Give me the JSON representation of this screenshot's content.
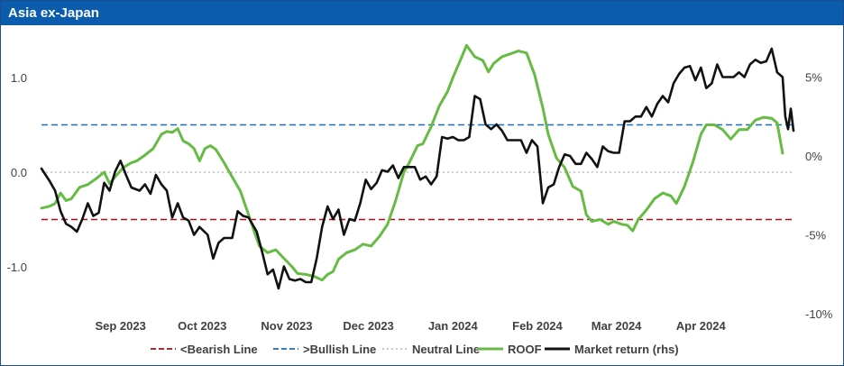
{
  "header": {
    "title": "Asia ex-Japan"
  },
  "chart_data": {
    "type": "line",
    "title": "Asia ex-Japan",
    "x_tick_labels": [
      "Sep 2023",
      "Oct 2023",
      "Nov 2023",
      "Dec 2023",
      "Jan 2024",
      "Feb 2024",
      "Mar 2024",
      "Apr 2024"
    ],
    "y_left": {
      "range": [
        -1.45,
        1.35
      ],
      "tick_values": [
        1.0,
        0.0,
        -1.0
      ],
      "tick_labels": [
        "1.0",
        "0.0",
        "-1.0"
      ]
    },
    "y_right": {
      "range": [
        -10,
        7.6
      ],
      "tick_values": [
        5,
        0,
        -5,
        -10
      ],
      "tick_labels": [
        "5%",
        "0%",
        "-5%",
        "-10%"
      ]
    },
    "reference_lines": [
      {
        "name": "<Bearish Line",
        "value": -0.5,
        "color": "#a50f15",
        "style": "dashed"
      },
      {
        "name": ">Bullish Line",
        "value": 0.5,
        "color": "#1f6fbf",
        "style": "dashed"
      },
      {
        "name": "Neutral Line",
        "value": 0.0,
        "color": "#bfbfbf",
        "style": "dotted"
      }
    ],
    "series": [
      {
        "name": "ROOF",
        "axis": "left",
        "color": "#66bb44",
        "points": [
          [
            "2023-08-17",
            -0.38
          ],
          [
            "2023-08-20",
            -0.36
          ],
          [
            "2023-08-22",
            -0.33
          ],
          [
            "2023-08-24",
            -0.22
          ],
          [
            "2023-08-26",
            -0.3
          ],
          [
            "2023-08-28",
            -0.28
          ],
          [
            "2023-08-31",
            -0.16
          ],
          [
            "2023-09-03",
            -0.13
          ],
          [
            "2023-09-06",
            -0.07
          ],
          [
            "2023-09-09",
            0.0
          ],
          [
            "2023-09-11",
            -0.12
          ],
          [
            "2023-09-13",
            -0.05
          ],
          [
            "2023-09-16",
            0.05
          ],
          [
            "2023-09-19",
            0.1
          ],
          [
            "2023-09-21",
            0.12
          ],
          [
            "2023-09-24",
            0.18
          ],
          [
            "2023-09-27",
            0.25
          ],
          [
            "2023-09-30",
            0.4
          ],
          [
            "2023-10-02",
            0.43
          ],
          [
            "2023-10-04",
            0.42
          ],
          [
            "2023-10-06",
            0.46
          ],
          [
            "2023-10-08",
            0.33
          ],
          [
            "2023-10-10",
            0.3
          ],
          [
            "2023-10-12",
            0.25
          ],
          [
            "2023-10-14",
            0.12
          ],
          [
            "2023-10-16",
            0.25
          ],
          [
            "2023-10-18",
            0.28
          ],
          [
            "2023-10-20",
            0.24
          ],
          [
            "2023-10-23",
            0.1
          ],
          [
            "2023-10-26",
            -0.05
          ],
          [
            "2023-10-29",
            -0.2
          ],
          [
            "2023-11-01",
            -0.45
          ],
          [
            "2023-11-03",
            -0.62
          ],
          [
            "2023-11-05",
            -0.78
          ],
          [
            "2023-11-08",
            -0.85
          ],
          [
            "2023-11-11",
            -0.82
          ],
          [
            "2023-11-14",
            -0.91
          ],
          [
            "2023-11-17",
            -1.0
          ],
          [
            "2023-11-19",
            -1.07
          ],
          [
            "2023-11-22",
            -1.08
          ],
          [
            "2023-11-25",
            -1.1
          ],
          [
            "2023-11-28",
            -1.14
          ],
          [
            "2023-11-30",
            -1.08
          ],
          [
            "2023-12-02",
            -1.05
          ],
          [
            "2023-12-04",
            -0.92
          ],
          [
            "2023-12-07",
            -0.85
          ],
          [
            "2023-12-10",
            -0.82
          ],
          [
            "2023-12-13",
            -0.76
          ],
          [
            "2023-12-16",
            -0.78
          ],
          [
            "2023-12-19",
            -0.68
          ],
          [
            "2023-12-22",
            -0.55
          ],
          [
            "2023-12-25",
            -0.3
          ],
          [
            "2023-12-28",
            0.0
          ],
          [
            "2023-12-30",
            0.1
          ],
          [
            "2024-01-02",
            0.28
          ],
          [
            "2024-01-04",
            0.3
          ],
          [
            "2024-01-07",
            0.48
          ],
          [
            "2024-01-10",
            0.7
          ],
          [
            "2024-01-13",
            0.85
          ],
          [
            "2024-01-15",
            1.0
          ],
          [
            "2024-01-18",
            1.2
          ],
          [
            "2024-01-20",
            1.34
          ],
          [
            "2024-01-23",
            1.22
          ],
          [
            "2024-01-26",
            1.18
          ],
          [
            "2024-01-28",
            1.06
          ],
          [
            "2024-01-30",
            1.15
          ],
          [
            "2024-02-02",
            1.22
          ],
          [
            "2024-02-05",
            1.25
          ],
          [
            "2024-02-08",
            1.28
          ],
          [
            "2024-02-11",
            1.26
          ],
          [
            "2024-02-14",
            1.03
          ],
          [
            "2024-02-17",
            0.68
          ],
          [
            "2024-02-19",
            0.4
          ],
          [
            "2024-02-22",
            0.15
          ],
          [
            "2024-02-25",
            0.05
          ],
          [
            "2024-02-28",
            -0.15
          ],
          [
            "2024-03-02",
            -0.2
          ],
          [
            "2024-03-04",
            -0.45
          ],
          [
            "2024-03-06",
            -0.52
          ],
          [
            "2024-03-09",
            -0.5
          ],
          [
            "2024-03-12",
            -0.55
          ],
          [
            "2024-03-14",
            -0.52
          ],
          [
            "2024-03-17",
            -0.55
          ],
          [
            "2024-03-19",
            -0.56
          ],
          [
            "2024-03-21",
            -0.62
          ],
          [
            "2024-03-23",
            -0.5
          ],
          [
            "2024-03-26",
            -0.4
          ],
          [
            "2024-03-29",
            -0.28
          ],
          [
            "2024-04-01",
            -0.22
          ],
          [
            "2024-04-04",
            -0.25
          ],
          [
            "2024-04-06",
            -0.33
          ],
          [
            "2024-04-09",
            -0.15
          ],
          [
            "2024-04-12",
            0.1
          ],
          [
            "2024-04-15",
            0.4
          ],
          [
            "2024-04-17",
            0.5
          ],
          [
            "2024-04-20",
            0.5
          ],
          [
            "2024-04-23",
            0.45
          ],
          [
            "2024-04-26",
            0.35
          ],
          [
            "2024-04-29",
            0.45
          ],
          [
            "2024-05-02",
            0.45
          ],
          [
            "2024-05-05",
            0.55
          ],
          [
            "2024-05-08",
            0.58
          ],
          [
            "2024-05-11",
            0.57
          ],
          [
            "2024-05-13",
            0.52
          ],
          [
            "2024-05-15",
            0.2
          ]
        ]
      },
      {
        "name": "Market return (rhs)",
        "axis": "right",
        "color": "#111111",
        "points": [
          [
            "2023-08-17",
            -0.8
          ],
          [
            "2023-08-20",
            -1.6
          ],
          [
            "2023-08-22",
            -2.2
          ],
          [
            "2023-08-24",
            -3.5
          ],
          [
            "2023-08-26",
            -4.3
          ],
          [
            "2023-08-28",
            -4.5
          ],
          [
            "2023-08-30",
            -4.8
          ],
          [
            "2023-09-01",
            -4.0
          ],
          [
            "2023-09-03",
            -3.0
          ],
          [
            "2023-09-05",
            -3.8
          ],
          [
            "2023-09-07",
            -3.6
          ],
          [
            "2023-09-09",
            -1.7
          ],
          [
            "2023-09-11",
            -2.2
          ],
          [
            "2023-09-13",
            -1.0
          ],
          [
            "2023-09-15",
            -0.3
          ],
          [
            "2023-09-17",
            -1.2
          ],
          [
            "2023-09-19",
            -2.0
          ],
          [
            "2023-09-22",
            -2.2
          ],
          [
            "2023-09-24",
            -1.8
          ],
          [
            "2023-09-26",
            -2.4
          ],
          [
            "2023-09-28",
            -1.2
          ],
          [
            "2023-09-30",
            -1.8
          ],
          [
            "2023-10-02",
            -2.2
          ],
          [
            "2023-10-04",
            -3.9
          ],
          [
            "2023-10-06",
            -3.0
          ],
          [
            "2023-10-08",
            -3.9
          ],
          [
            "2023-10-10",
            -4.1
          ],
          [
            "2023-10-12",
            -5.0
          ],
          [
            "2023-10-14",
            -4.5
          ],
          [
            "2023-10-17",
            -5.0
          ],
          [
            "2023-10-19",
            -6.5
          ],
          [
            "2023-10-21",
            -5.5
          ],
          [
            "2023-10-23",
            -5.2
          ],
          [
            "2023-10-26",
            -5.2
          ],
          [
            "2023-10-28",
            -3.5
          ],
          [
            "2023-10-30",
            -3.8
          ],
          [
            "2023-11-01",
            -3.9
          ],
          [
            "2023-11-04",
            -4.8
          ],
          [
            "2023-11-06",
            -6.1
          ],
          [
            "2023-11-08",
            -7.5
          ],
          [
            "2023-11-10",
            -7.2
          ],
          [
            "2023-11-12",
            -8.4
          ],
          [
            "2023-11-14",
            -7.0
          ],
          [
            "2023-11-16",
            -7.8
          ],
          [
            "2023-11-18",
            -7.9
          ],
          [
            "2023-11-20",
            -7.8
          ],
          [
            "2023-11-22",
            -8.0
          ],
          [
            "2023-11-24",
            -8.0
          ],
          [
            "2023-11-26",
            -6.5
          ],
          [
            "2023-11-28",
            -4.5
          ],
          [
            "2023-11-30",
            -3.2
          ],
          [
            "2023-12-02",
            -4.0
          ],
          [
            "2023-12-04",
            -3.4
          ],
          [
            "2023-12-06",
            -5.0
          ],
          [
            "2023-12-08",
            -4.0
          ],
          [
            "2023-12-10",
            -4.1
          ],
          [
            "2023-12-12",
            -3.0
          ],
          [
            "2023-12-14",
            -1.5
          ],
          [
            "2023-12-16",
            -2.1
          ],
          [
            "2023-12-18",
            -1.7
          ],
          [
            "2023-12-20",
            -0.9
          ],
          [
            "2023-12-22",
            -1.0
          ],
          [
            "2023-12-24",
            -0.6
          ],
          [
            "2023-12-26",
            -1.4
          ],
          [
            "2023-12-28",
            -0.7
          ],
          [
            "2023-12-30",
            -0.7
          ],
          [
            "2024-01-01",
            -0.7
          ],
          [
            "2024-01-03",
            -1.5
          ],
          [
            "2024-01-05",
            -1.3
          ],
          [
            "2024-01-07",
            -1.8
          ],
          [
            "2024-01-09",
            -1.3
          ],
          [
            "2024-01-11",
            1.2
          ],
          [
            "2024-01-13",
            1.1
          ],
          [
            "2024-01-15",
            1.2
          ],
          [
            "2024-01-17",
            1.0
          ],
          [
            "2024-01-19",
            1.0
          ],
          [
            "2024-01-21",
            1.2
          ],
          [
            "2024-01-23",
            3.8
          ],
          [
            "2024-01-25",
            3.6
          ],
          [
            "2024-01-27",
            2.0
          ],
          [
            "2024-01-29",
            1.7
          ],
          [
            "2024-01-31",
            2.0
          ],
          [
            "2024-02-02",
            1.6
          ],
          [
            "2024-02-04",
            1.0
          ],
          [
            "2024-02-07",
            1.0
          ],
          [
            "2024-02-09",
            1.0
          ],
          [
            "2024-02-11",
            0.2
          ],
          [
            "2024-02-13",
            1.0
          ],
          [
            "2024-02-15",
            0.6
          ],
          [
            "2024-02-17",
            -3.0
          ],
          [
            "2024-02-19",
            -2.0
          ],
          [
            "2024-02-21",
            -1.8
          ],
          [
            "2024-02-23",
            -0.7
          ],
          [
            "2024-02-25",
            0.1
          ],
          [
            "2024-02-27",
            0.0
          ],
          [
            "2024-02-29",
            -0.5
          ],
          [
            "2024-03-02",
            -0.5
          ],
          [
            "2024-03-04",
            0.2
          ],
          [
            "2024-03-06",
            -0.2
          ],
          [
            "2024-03-08",
            -0.7
          ],
          [
            "2024-03-10",
            0.6
          ],
          [
            "2024-03-12",
            0.3
          ],
          [
            "2024-03-14",
            0.2
          ],
          [
            "2024-03-16",
            0.2
          ],
          [
            "2024-03-18",
            2.2
          ],
          [
            "2024-03-20",
            2.2
          ],
          [
            "2024-03-22",
            2.5
          ],
          [
            "2024-03-24",
            2.5
          ],
          [
            "2024-03-26",
            3.1
          ],
          [
            "2024-03-28",
            2.5
          ],
          [
            "2024-03-30",
            3.3
          ],
          [
            "2024-04-01",
            3.8
          ],
          [
            "2024-04-03",
            3.4
          ],
          [
            "2024-04-05",
            4.6
          ],
          [
            "2024-04-07",
            5.2
          ],
          [
            "2024-04-09",
            5.6
          ],
          [
            "2024-04-11",
            5.7
          ],
          [
            "2024-04-13",
            4.8
          ],
          [
            "2024-04-15",
            5.6
          ],
          [
            "2024-04-17",
            4.3
          ],
          [
            "2024-04-19",
            4.6
          ],
          [
            "2024-04-21",
            5.8
          ],
          [
            "2024-04-23",
            5.0
          ],
          [
            "2024-04-25",
            5.0
          ],
          [
            "2024-04-27",
            5.0
          ],
          [
            "2024-04-29",
            5.3
          ],
          [
            "2024-05-01",
            5.0
          ],
          [
            "2024-05-03",
            5.8
          ],
          [
            "2024-05-05",
            6.1
          ],
          [
            "2024-05-07",
            5.9
          ],
          [
            "2024-05-09",
            6.0
          ],
          [
            "2024-05-11",
            6.8
          ],
          [
            "2024-05-13",
            5.3
          ],
          [
            "2024-05-15",
            5.0
          ],
          [
            "2024-05-16",
            2.5
          ],
          [
            "2024-05-17",
            1.7
          ],
          [
            "2024-05-18",
            3.0
          ],
          [
            "2024-05-19",
            1.6
          ]
        ]
      }
    ],
    "legend": {
      "position": "bottom",
      "entries": [
        {
          "label": "<Bearish Line",
          "color": "#a50f15",
          "style": "dashed"
        },
        {
          "label": ">Bullish Line",
          "color": "#1f6fbf",
          "style": "dashed"
        },
        {
          "label": "Neutral Line",
          "color": "#bfbfbf",
          "style": "dotted"
        },
        {
          "label": "ROOF",
          "color": "#66bb44",
          "style": "solid"
        },
        {
          "label": "Market return (rhs)",
          "color": "#111111",
          "style": "solid"
        }
      ]
    },
    "grid": false
  }
}
